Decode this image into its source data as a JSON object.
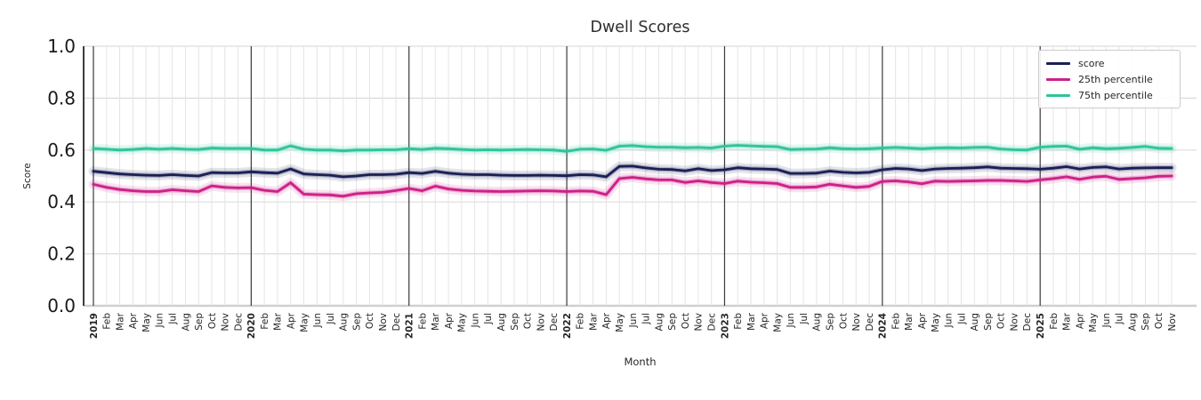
{
  "title": "Dwell Scores",
  "xlabel": "Month",
  "ylabel": "Score",
  "chart_data": {
    "type": "line",
    "title": "Dwell Scores",
    "xlabel": "Month",
    "ylabel": "Score",
    "ylim": [
      0.0,
      1.0
    ],
    "yticks": [
      0.0,
      0.2,
      0.4,
      0.6,
      0.8,
      1.0
    ],
    "grid": true,
    "legend_position": "upper right",
    "x_labels": [
      "2019",
      "Feb",
      "Mar",
      "Apr",
      "May",
      "Jun",
      "Jul",
      "Aug",
      "Sep",
      "Oct",
      "Nov",
      "Dec",
      "2020",
      "Feb",
      "Mar",
      "Apr",
      "May",
      "Jun",
      "Jul",
      "Aug",
      "Sep",
      "Oct",
      "Nov",
      "Dec",
      "2021",
      "Feb",
      "Mar",
      "Apr",
      "May",
      "Jun",
      "Jul",
      "Aug",
      "Sep",
      "Oct",
      "Nov",
      "Dec",
      "2022",
      "Feb",
      "Mar",
      "Apr",
      "May",
      "Jun",
      "Jul",
      "Aug",
      "Sep",
      "Oct",
      "Nov",
      "Dec",
      "2023",
      "Feb",
      "Mar",
      "Apr",
      "May",
      "Jun",
      "Jul",
      "Aug",
      "Sep",
      "Oct",
      "Nov",
      "Dec",
      "2024",
      "Feb",
      "Mar",
      "Apr",
      "May",
      "Jun",
      "Jul",
      "Aug",
      "Sep",
      "Oct",
      "Nov",
      "Dec",
      "2025",
      "Feb",
      "Mar",
      "Apr",
      "May",
      "Jun",
      "Jul",
      "Aug",
      "Sep",
      "Oct",
      "Nov"
    ],
    "year_indices": [
      0,
      12,
      24,
      36,
      48,
      60,
      72
    ],
    "series": [
      {
        "name": "score",
        "color": "#1b1e55",
        "values": [
          0.518,
          0.513,
          0.508,
          0.505,
          0.503,
          0.502,
          0.505,
          0.502,
          0.5,
          0.513,
          0.512,
          0.512,
          0.516,
          0.513,
          0.511,
          0.527,
          0.508,
          0.505,
          0.503,
          0.497,
          0.5,
          0.505,
          0.505,
          0.507,
          0.513,
          0.51,
          0.518,
          0.511,
          0.507,
          0.505,
          0.505,
          0.503,
          0.502,
          0.502,
          0.503,
          0.502,
          0.501,
          0.505,
          0.504,
          0.497,
          0.537,
          0.538,
          0.531,
          0.526,
          0.525,
          0.52,
          0.528,
          0.521,
          0.524,
          0.532,
          0.528,
          0.527,
          0.525,
          0.51,
          0.51,
          0.511,
          0.519,
          0.514,
          0.512,
          0.514,
          0.524,
          0.529,
          0.527,
          0.521,
          0.527,
          0.529,
          0.53,
          0.532,
          0.535,
          0.53,
          0.529,
          0.528,
          0.526,
          0.53,
          0.536,
          0.527,
          0.533,
          0.535,
          0.527,
          0.53,
          0.531,
          0.532,
          0.532
        ]
      },
      {
        "name": "25th percentile",
        "color": "#cd2088",
        "values": [
          0.468,
          0.456,
          0.448,
          0.443,
          0.44,
          0.44,
          0.447,
          0.443,
          0.44,
          0.462,
          0.456,
          0.454,
          0.455,
          0.445,
          0.44,
          0.474,
          0.43,
          0.428,
          0.427,
          0.422,
          0.432,
          0.435,
          0.437,
          0.444,
          0.452,
          0.443,
          0.461,
          0.45,
          0.445,
          0.442,
          0.441,
          0.44,
          0.441,
          0.442,
          0.443,
          0.442,
          0.44,
          0.442,
          0.441,
          0.428,
          0.49,
          0.495,
          0.489,
          0.485,
          0.485,
          0.475,
          0.481,
          0.475,
          0.471,
          0.48,
          0.476,
          0.474,
          0.471,
          0.456,
          0.456,
          0.458,
          0.468,
          0.462,
          0.456,
          0.46,
          0.479,
          0.481,
          0.477,
          0.47,
          0.48,
          0.479,
          0.48,
          0.481,
          0.483,
          0.483,
          0.481,
          0.479,
          0.485,
          0.49,
          0.497,
          0.487,
          0.496,
          0.499,
          0.487,
          0.49,
          0.493,
          0.499,
          0.5
        ]
      },
      {
        "name": "75th percentile",
        "color": "#2ec49a",
        "values": [
          0.606,
          0.603,
          0.6,
          0.602,
          0.606,
          0.603,
          0.606,
          0.603,
          0.602,
          0.608,
          0.606,
          0.606,
          0.606,
          0.6,
          0.6,
          0.616,
          0.603,
          0.6,
          0.6,
          0.597,
          0.6,
          0.6,
          0.601,
          0.601,
          0.605,
          0.602,
          0.607,
          0.605,
          0.602,
          0.6,
          0.601,
          0.6,
          0.601,
          0.602,
          0.601,
          0.6,
          0.595,
          0.603,
          0.604,
          0.599,
          0.615,
          0.617,
          0.613,
          0.611,
          0.611,
          0.609,
          0.61,
          0.608,
          0.615,
          0.618,
          0.616,
          0.614,
          0.613,
          0.602,
          0.603,
          0.604,
          0.609,
          0.605,
          0.604,
          0.605,
          0.608,
          0.61,
          0.608,
          0.605,
          0.608,
          0.609,
          0.608,
          0.61,
          0.611,
          0.604,
          0.601,
          0.6,
          0.611,
          0.614,
          0.615,
          0.603,
          0.609,
          0.605,
          0.607,
          0.61,
          0.614,
          0.607,
          0.606
        ]
      }
    ]
  }
}
